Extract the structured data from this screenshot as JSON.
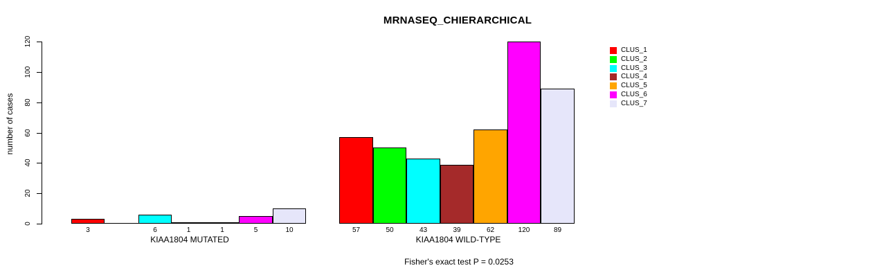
{
  "title": "MRNASEQ_CHIERARCHICAL",
  "y_axis": {
    "label": "number of cases",
    "ticks": [
      0,
      20,
      40,
      60,
      80,
      100,
      120
    ]
  },
  "legend": {
    "position": "right",
    "items": [
      {
        "label": "CLUS_1",
        "color": "#FF0000"
      },
      {
        "label": "CLUS_2",
        "color": "#00FF00"
      },
      {
        "label": "CLUS_3",
        "color": "#00FFFF"
      },
      {
        "label": "CLUS_4",
        "color": "#A52A2A"
      },
      {
        "label": "CLUS_5",
        "color": "#FFA500"
      },
      {
        "label": "CLUS_6",
        "color": "#FF00FF"
      },
      {
        "label": "CLUS_7",
        "color": "#E6E6FA"
      }
    ]
  },
  "annotation": "Fisher's exact test P = 0.0253",
  "chart_data": {
    "type": "bar",
    "title": "MRNASEQ_CHIERARCHICAL",
    "ylabel": "number of cases",
    "xlabel": "",
    "ylim": [
      0,
      120
    ],
    "grid": false,
    "legend_position": "right",
    "categories": [
      "CLUS_1",
      "CLUS_2",
      "CLUS_3",
      "CLUS_4",
      "CLUS_5",
      "CLUS_6",
      "CLUS_7"
    ],
    "colors": [
      "#FF0000",
      "#00FF00",
      "#00FFFF",
      "#A52A2A",
      "#FFA500",
      "#FF00FF",
      "#E6E6FA"
    ],
    "series": [
      {
        "name": "KIAA1804 MUTATED",
        "values": [
          3,
          0,
          6,
          1,
          1,
          5,
          10
        ]
      },
      {
        "name": "KIAA1804 WILD-TYPE",
        "values": [
          57,
          50,
          43,
          39,
          62,
          120,
          89
        ]
      }
    ],
    "bar_labels": [
      [
        "3",
        "",
        "6",
        "1",
        "1",
        "5",
        "10"
      ],
      [
        "57",
        "50",
        "43",
        "39",
        "62",
        "120",
        "89"
      ]
    ],
    "annotation": "Fisher's exact test P = 0.0253"
  }
}
